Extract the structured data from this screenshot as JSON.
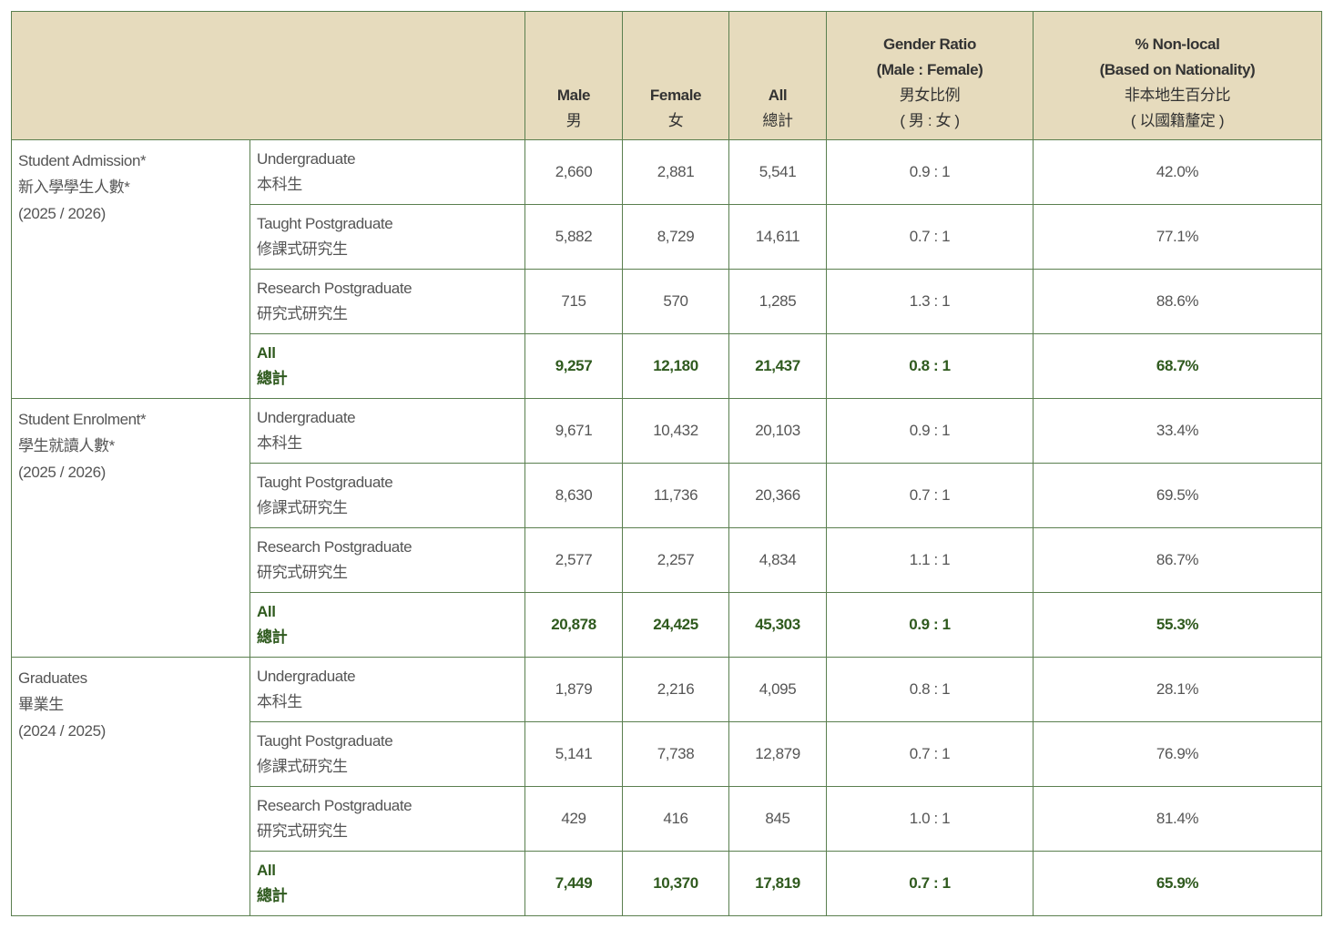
{
  "header": {
    "columns": [
      {
        "en": "Male",
        "zh": "男"
      },
      {
        "en": "Female",
        "zh": "女"
      },
      {
        "en": "All",
        "zh": "總計"
      },
      {
        "en": "Gender Ratio",
        "en2": "(Male : Female)",
        "zh": "男女比例",
        "zh2": "( 男 : 女 )"
      },
      {
        "en": "% Non-local",
        "en2": "(Based on Nationality)",
        "zh": "非本地生百分比",
        "zh2": "( 以國籍釐定 )"
      }
    ]
  },
  "colors": {
    "border": "#5a7f4f",
    "header_bg": "#e6dbbd",
    "total_text": "#2f5a1e"
  },
  "groups": [
    {
      "en": "Student Admission*",
      "zh": "新入學學生人數*",
      "year": "(2025 / 2026)",
      "rows": [
        {
          "en": "Undergraduate",
          "zh": "本科生",
          "male": "2,660",
          "female": "2,881",
          "all": "5,541",
          "ratio": "0.9 : 1",
          "nonlocal": "42.0%"
        },
        {
          "en": "Taught Postgraduate",
          "zh": "修課式研究生",
          "male": "5,882",
          "female": "8,729",
          "all": "14,611",
          "ratio": "0.7 : 1",
          "nonlocal": "77.1%"
        },
        {
          "en": "Research Postgraduate",
          "zh": "研究式研究生",
          "male": "715",
          "female": "570",
          "all": "1,285",
          "ratio": "1.3 : 1",
          "nonlocal": "88.6%"
        },
        {
          "en": "All",
          "zh": "總計",
          "male": "9,257",
          "female": "12,180",
          "all": "21,437",
          "ratio": "0.8 : 1",
          "nonlocal": "68.7%",
          "total": true
        }
      ]
    },
    {
      "en": "Student Enrolment*",
      "zh": "學生就讀人數*",
      "year": "(2025 / 2026)",
      "rows": [
        {
          "en": "Undergraduate",
          "zh": "本科生",
          "male": "9,671",
          "female": "10,432",
          "all": "20,103",
          "ratio": "0.9 : 1",
          "nonlocal": "33.4%"
        },
        {
          "en": "Taught Postgraduate",
          "zh": "修課式研究生",
          "male": "8,630",
          "female": "11,736",
          "all": "20,366",
          "ratio": "0.7 : 1",
          "nonlocal": "69.5%"
        },
        {
          "en": "Research Postgraduate",
          "zh": "研究式研究生",
          "male": "2,577",
          "female": "2,257",
          "all": "4,834",
          "ratio": "1.1 : 1",
          "nonlocal": "86.7%"
        },
        {
          "en": "All",
          "zh": "總計",
          "male": "20,878",
          "female": "24,425",
          "all": "45,303",
          "ratio": "0.9 : 1",
          "nonlocal": "55.3%",
          "total": true
        }
      ]
    },
    {
      "en": "Graduates",
      "zh": "畢業生",
      "year": "(2024 / 2025)",
      "rows": [
        {
          "en": "Undergraduate",
          "zh": "本科生",
          "male": "1,879",
          "female": "2,216",
          "all": "4,095",
          "ratio": "0.8 : 1",
          "nonlocal": "28.1%"
        },
        {
          "en": "Taught Postgraduate",
          "zh": "修課式研究生",
          "male": "5,141",
          "female": "7,738",
          "all": "12,879",
          "ratio": "0.7 : 1",
          "nonlocal": "76.9%"
        },
        {
          "en": "Research Postgraduate",
          "zh": "研究式研究生",
          "male": "429",
          "female": "416",
          "all": "845",
          "ratio": "1.0 : 1",
          "nonlocal": "81.4%"
        },
        {
          "en": "All",
          "zh": "總計",
          "male": "7,449",
          "female": "10,370",
          "all": "17,819",
          "ratio": "0.7 : 1",
          "nonlocal": "65.9%",
          "total": true
        }
      ]
    }
  ]
}
